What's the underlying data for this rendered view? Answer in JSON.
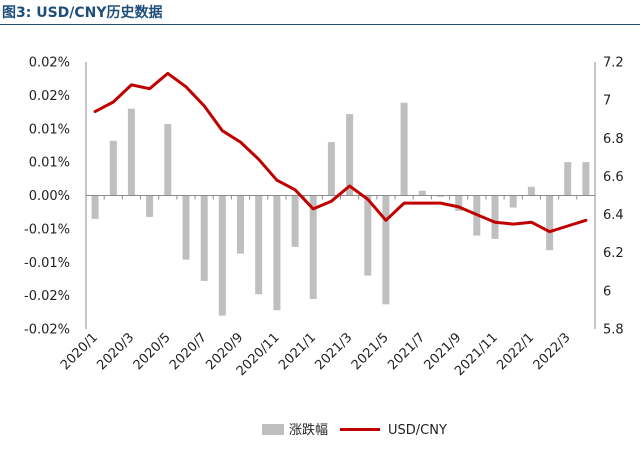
{
  "header": {
    "title": "图3: USD/CNY历史数据"
  },
  "chart_data": {
    "type": "bar+line",
    "categories": [
      "2020/1",
      "2020/2",
      "2020/3",
      "2020/4",
      "2020/5",
      "2020/6",
      "2020/7",
      "2020/8",
      "2020/9",
      "2020/10",
      "2020/11",
      "2020/12",
      "2021/1",
      "2021/2",
      "2021/3",
      "2021/4",
      "2021/5",
      "2021/6",
      "2021/7",
      "2021/8",
      "2021/9",
      "2021/10",
      "2021/11",
      "2021/12",
      "2022/1",
      "2022/2",
      "2022/3",
      "2022/4"
    ],
    "x_tick_labels": [
      "2020/1",
      "2020/3",
      "2020/5",
      "2020/7",
      "2020/9",
      "2020/11",
      "2021/1",
      "2021/3",
      "2021/5",
      "2021/7",
      "2021/9",
      "2021/11",
      "2022/1",
      "2022/3"
    ],
    "series": [
      {
        "name": "涨跌幅",
        "type": "bar",
        "axis": "left",
        "color": "#bfbfbf",
        "values": [
          -0.0035,
          0.0082,
          0.013,
          -0.0032,
          0.0107,
          -0.0096,
          -0.0128,
          -0.018,
          -0.0087,
          -0.0148,
          -0.0172,
          -0.0077,
          -0.0155,
          0.008,
          0.0122,
          -0.012,
          -0.0163,
          0.0139,
          0.0007,
          -0.0002,
          -0.0023,
          -0.006,
          -0.0065,
          -0.0018,
          0.0013,
          -0.0082,
          0.005,
          0.005
        ]
      },
      {
        "name": "USD/CNY",
        "type": "line",
        "axis": "right",
        "color": "#c00000",
        "values": [
          6.94,
          6.99,
          7.08,
          7.06,
          7.14,
          7.07,
          6.97,
          6.84,
          6.78,
          6.69,
          6.58,
          6.53,
          6.43,
          6.47,
          6.55,
          6.48,
          6.37,
          6.46,
          6.46,
          6.46,
          6.44,
          6.4,
          6.36,
          6.35,
          6.36,
          6.31,
          6.34,
          6.37
        ]
      }
    ],
    "y_left": {
      "ylim": [
        -0.02,
        0.02
      ],
      "tick_labels": [
        "0.02%",
        "0.02%",
        "0.01%",
        "0.01%",
        "0.00%",
        "-0.01%",
        "-0.01%",
        "-0.02%",
        "-0.02%"
      ]
    },
    "y_right": {
      "ylim": [
        5.8,
        7.2
      ],
      "tick_labels": [
        "7.2",
        "7",
        "6.8",
        "6.6",
        "6.4",
        "6.2",
        "6",
        "5.8"
      ]
    },
    "grid": false,
    "legend_position": "bottom-center"
  }
}
